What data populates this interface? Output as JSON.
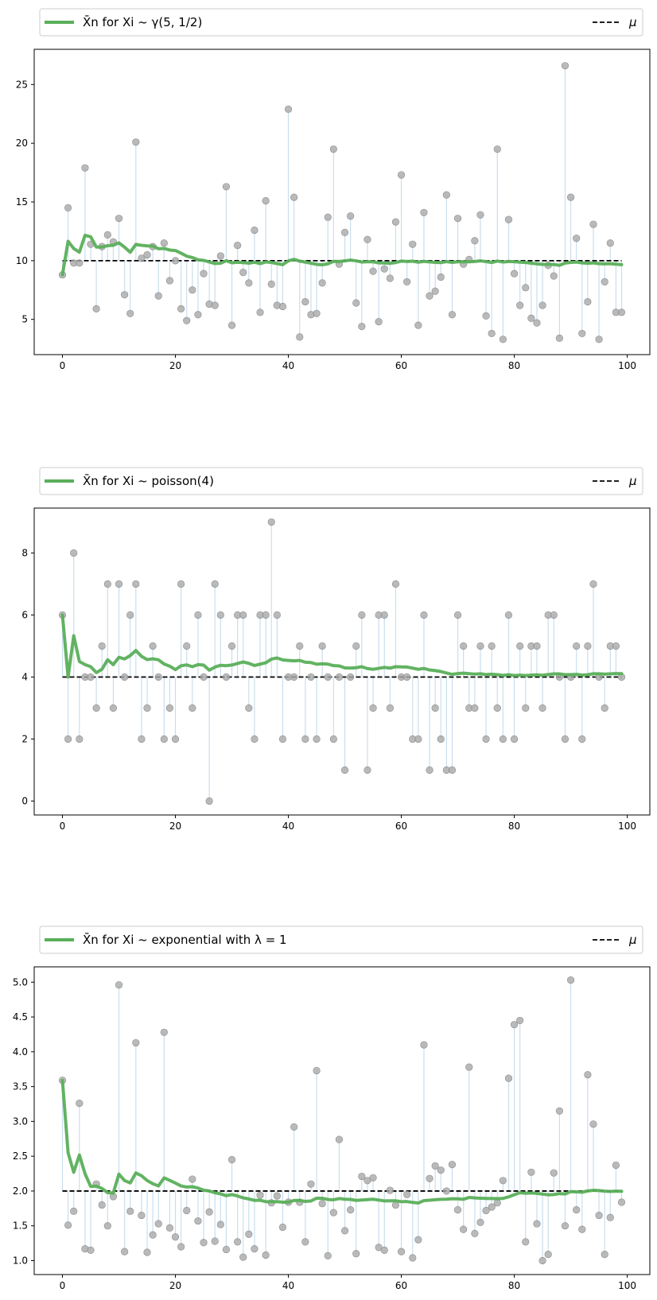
{
  "chart_data": [
    {
      "type": "scatter",
      "legend": {
        "location": "top, spanning full width, in two columns",
        "mean_label": "X̄n for Xi ~ γ(5, 1/2)",
        "mu_label": "μ"
      },
      "xlim": [
        -5,
        104
      ],
      "ylim": [
        2,
        28
      ],
      "xticks": [
        0,
        20,
        40,
        60,
        80,
        100
      ],
      "yticks": [
        5,
        10,
        15,
        20,
        25
      ],
      "mu": 10,
      "samples": [
        8.8,
        14.5,
        9.8,
        9.8,
        17.9,
        11.4,
        5.9,
        11.2,
        12.2,
        11.6,
        13.6,
        7.1,
        5.5,
        20.1,
        10.2,
        10.5,
        11.2,
        7.0,
        11.5,
        8.3,
        10.0,
        5.9,
        4.9,
        7.5,
        5.4,
        8.9,
        6.3,
        6.2,
        10.4,
        16.3,
        4.5,
        11.3,
        9.0,
        8.1,
        12.6,
        5.6,
        15.1,
        8.0,
        6.2,
        6.1,
        22.9,
        15.4,
        3.5,
        6.5,
        5.4,
        5.5,
        8.1,
        13.7,
        19.5,
        9.7,
        12.4,
        13.8,
        6.4,
        4.4,
        11.8,
        9.1,
        4.8,
        9.3,
        8.5,
        13.3,
        17.3,
        8.2,
        11.4,
        4.5,
        14.1,
        7.0,
        7.4,
        8.6,
        15.6,
        5.4,
        13.6,
        9.7,
        10.1,
        11.7,
        13.9,
        5.3,
        3.8,
        19.5,
        3.3,
        13.5,
        8.9,
        6.2,
        7.7,
        5.1,
        4.7,
        6.2,
        9.6,
        8.7,
        3.4,
        26.6,
        15.4,
        11.9,
        3.8,
        6.5,
        13.1,
        3.3,
        8.2,
        11.5,
        5.6,
        5.6
      ],
      "colors": {
        "mean": "#5aaf5a",
        "sample": "#a9a9a9",
        "stem": "#bcd7ea",
        "mu": "#000000"
      }
    },
    {
      "type": "scatter",
      "legend": {
        "location": "top, spanning full width, in two columns",
        "mean_label": "X̄n for Xi ~ poisson(4)",
        "mu_label": "μ"
      },
      "xlim": [
        -5,
        104
      ],
      "ylim": [
        -0.45,
        9.45
      ],
      "xticks": [
        0,
        20,
        40,
        60,
        80,
        100
      ],
      "yticks": [
        0,
        2,
        4,
        6,
        8
      ],
      "mu": 4,
      "samples": [
        6,
        2,
        8,
        2,
        4,
        4,
        3,
        5,
        7,
        3,
        7,
        4,
        6,
        7,
        2,
        3,
        5,
        4,
        2,
        3,
        2,
        7,
        5,
        3,
        6,
        4,
        0,
        7,
        6,
        4,
        5,
        6,
        6,
        3,
        2,
        6,
        6,
        9,
        6,
        2,
        4,
        4,
        5,
        2,
        4,
        2,
        5,
        4,
        2,
        4,
        1,
        4,
        5,
        6,
        1,
        3,
        6,
        6,
        3,
        7,
        4,
        4,
        2,
        2,
        6,
        1,
        3,
        2,
        1,
        1,
        6,
        5,
        3,
        3,
        5,
        2,
        5,
        3,
        2,
        6,
        2,
        5,
        3,
        5,
        5,
        3,
        6,
        6,
        4,
        2,
        4,
        5,
        2,
        5,
        7,
        4,
        3,
        5,
        5,
        4
      ],
      "colors": {
        "mean": "#5aaf5a",
        "sample": "#a9a9a9",
        "stem": "#bcd7ea",
        "mu": "#000000"
      }
    },
    {
      "type": "scatter",
      "legend": {
        "location": "top, spanning full width, in two columns",
        "mean_label": "X̄n for Xi ~ exponential with λ = 1",
        "mu_label": "μ"
      },
      "xlim": [
        -5,
        104
      ],
      "ylim": [
        0.8,
        5.22
      ],
      "xticks": [
        0,
        20,
        40,
        60,
        80,
        100
      ],
      "yticks": [
        1.0,
        1.5,
        2.0,
        2.5,
        3.0,
        3.5,
        4.0,
        4.5,
        5.0
      ],
      "mu": 2,
      "samples": [
        3.59,
        1.51,
        1.71,
        3.26,
        1.17,
        1.15,
        2.1,
        1.8,
        1.5,
        1.92,
        4.96,
        1.13,
        1.71,
        4.13,
        1.65,
        1.12,
        1.37,
        1.53,
        4.28,
        1.47,
        1.34,
        1.2,
        1.72,
        2.17,
        1.57,
        1.26,
        1.7,
        1.28,
        1.52,
        1.16,
        2.45,
        1.27,
        1.05,
        1.38,
        1.17,
        1.94,
        1.08,
        1.83,
        1.93,
        1.48,
        1.84,
        2.92,
        1.84,
        1.27,
        2.1,
        3.73,
        1.82,
        1.07,
        1.69,
        2.74,
        1.43,
        1.73,
        1.1,
        2.21,
        2.15,
        2.19,
        1.19,
        1.15,
        2.01,
        1.8,
        1.13,
        1.95,
        1.04,
        1.3,
        4.1,
        2.18,
        2.36,
        2.3,
        2.0,
        2.38,
        1.73,
        1.45,
        3.78,
        1.39,
        1.55,
        1.72,
        1.77,
        1.83,
        2.15,
        3.62,
        4.39,
        4.45,
        1.27,
        2.27,
        1.53,
        1.0,
        1.09,
        2.26,
        3.15,
        1.5,
        5.03,
        1.73,
        1.45,
        3.67,
        2.96,
        1.65,
        1.09,
        1.62,
        2.37,
        1.84
      ],
      "colors": {
        "mean": "#5aaf5a",
        "sample": "#a9a9a9",
        "stem": "#bcd7ea",
        "mu": "#000000"
      }
    }
  ]
}
